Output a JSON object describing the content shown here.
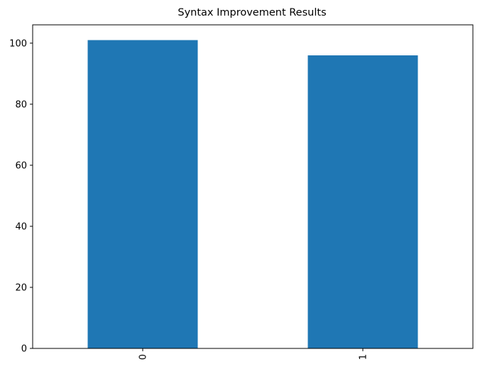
{
  "chart_data": {
    "type": "bar",
    "title": "Syntax Improvement Results",
    "xlabel": "",
    "ylabel": "",
    "categories": [
      "0",
      "1"
    ],
    "values": [
      101,
      96
    ],
    "ylim": [
      0,
      106
    ],
    "yticks": [
      0,
      20,
      40,
      60,
      80,
      100
    ],
    "x_tick_rotation": "vertical",
    "grid": false,
    "legend": "none",
    "bar_color": "#1f77b4"
  }
}
